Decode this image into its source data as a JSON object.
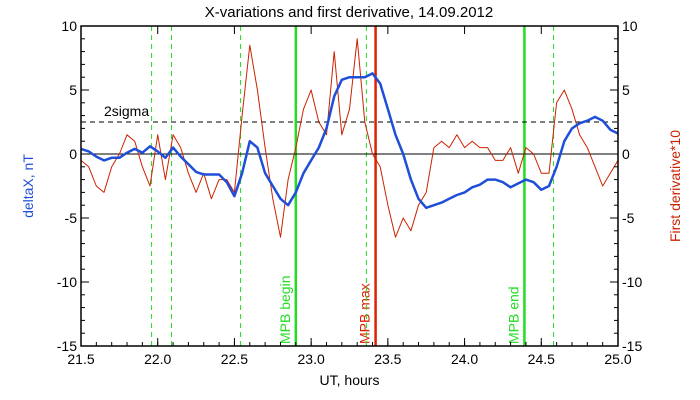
{
  "chart_data": {
    "type": "line",
    "title": "X-variations and first derivative, 14.09.2012",
    "xlabel": "UT, hours",
    "ylabel_left": "deltaX, nT",
    "ylabel_right": "First derivative*10",
    "xlim": [
      21.5,
      25.0
    ],
    "ylim": [
      -15,
      10
    ],
    "x_ticks": [
      21.5,
      22.0,
      22.5,
      23.0,
      23.5,
      24.0,
      24.5,
      25.0
    ],
    "x_tick_labels": [
      "21.5",
      "22.0",
      "22.5",
      "23.0",
      "23.5",
      "24.0",
      "24.5",
      "25.0"
    ],
    "y_ticks": [
      -15,
      -10,
      -5,
      0,
      5,
      10
    ],
    "y_tick_labels": [
      "-15",
      "-10",
      "-5",
      "0",
      "5",
      "10"
    ],
    "colors": {
      "deltaX": "#1f4fd8",
      "derivative": "#cc2200",
      "mpb": "#22dd22",
      "max": "#dd2200",
      "axis": "#000000"
    },
    "threshold": {
      "label": "2sigma",
      "value": 2.5
    },
    "zero_line": 0,
    "series": [
      {
        "key": "deltaX",
        "x": [
          21.5,
          21.55,
          21.6,
          21.65,
          21.7,
          21.75,
          21.8,
          21.85,
          21.9,
          21.95,
          22.0,
          22.05,
          22.1,
          22.15,
          22.2,
          22.25,
          22.3,
          22.35,
          22.4,
          22.45,
          22.5,
          22.55,
          22.6,
          22.65,
          22.7,
          22.75,
          22.8,
          22.85,
          22.9,
          22.95,
          23.0,
          23.05,
          23.1,
          23.15,
          23.2,
          23.25,
          23.3,
          23.35,
          23.4,
          23.45,
          23.5,
          23.55,
          23.6,
          23.65,
          23.7,
          23.75,
          23.8,
          23.85,
          23.9,
          23.95,
          24.0,
          24.05,
          24.1,
          24.15,
          24.2,
          24.25,
          24.3,
          24.35,
          24.4,
          24.45,
          24.5,
          24.55,
          24.6,
          24.65,
          24.7,
          24.75,
          24.8,
          24.85,
          24.9,
          24.95,
          25.0
        ],
        "y": [
          0.4,
          0.2,
          -0.2,
          -0.5,
          -0.3,
          -0.3,
          0.1,
          0.4,
          0.1,
          0.6,
          0.2,
          -0.3,
          0.5,
          -0.2,
          -0.8,
          -1.4,
          -1.6,
          -1.6,
          -1.6,
          -2.2,
          -3.3,
          -1.5,
          1.0,
          0.5,
          -1.5,
          -2.5,
          -3.5,
          -4.0,
          -3.0,
          -1.5,
          -0.5,
          0.5,
          2.0,
          4.5,
          5.8,
          6.0,
          6.0,
          6.0,
          6.3,
          5.5,
          3.5,
          1.5,
          0.0,
          -2.0,
          -3.5,
          -4.2,
          -4.0,
          -3.8,
          -3.5,
          -3.2,
          -3.0,
          -2.6,
          -2.4,
          -2.0,
          -2.0,
          -2.2,
          -2.6,
          -2.3,
          -2.0,
          -2.2,
          -2.8,
          -2.5,
          -1.0,
          1.0,
          2.0,
          2.4,
          2.6,
          2.9,
          2.6,
          1.9,
          1.6
        ]
      },
      {
        "key": "derivative",
        "x": [
          21.5,
          21.55,
          21.6,
          21.65,
          21.7,
          21.75,
          21.8,
          21.85,
          21.9,
          21.95,
          22.0,
          22.05,
          22.1,
          22.15,
          22.2,
          22.25,
          22.3,
          22.35,
          22.4,
          22.45,
          22.5,
          22.55,
          22.6,
          22.65,
          22.7,
          22.75,
          22.8,
          22.85,
          22.9,
          22.95,
          23.0,
          23.05,
          23.1,
          23.15,
          23.2,
          23.25,
          23.3,
          23.35,
          23.4,
          23.45,
          23.5,
          23.55,
          23.6,
          23.65,
          23.7,
          23.75,
          23.8,
          23.85,
          23.9,
          23.95,
          24.0,
          24.05,
          24.1,
          24.15,
          24.2,
          24.25,
          24.3,
          24.35,
          24.4,
          24.45,
          24.5,
          24.55,
          24.6,
          24.65,
          24.7,
          24.75,
          24.8,
          24.85,
          24.9,
          24.95,
          25.0
        ],
        "y": [
          -0.5,
          -1.0,
          -2.5,
          -3.0,
          -1.0,
          0.0,
          1.5,
          1.0,
          -1.0,
          -2.5,
          1.5,
          -2.0,
          1.5,
          0.5,
          -1.5,
          -3.0,
          -1.5,
          -3.5,
          -2.0,
          -2.0,
          -3.0,
          3.0,
          8.5,
          5.0,
          0.5,
          -3.5,
          -6.5,
          -2.0,
          0.5,
          3.5,
          5.0,
          2.5,
          1.5,
          8.0,
          1.5,
          3.5,
          9.0,
          2.5,
          0.0,
          -1.0,
          -4.0,
          -6.5,
          -5.0,
          -6.0,
          -4.0,
          -3.0,
          0.5,
          1.0,
          0.5,
          1.5,
          0.5,
          1.0,
          0.5,
          0.5,
          -0.5,
          -0.5,
          0.5,
          -1.5,
          0.5,
          0.0,
          -1.5,
          -1.5,
          4.0,
          5.0,
          3.5,
          1.5,
          0.5,
          -1.0,
          -2.5,
          -1.5,
          -0.5
        ]
      }
    ],
    "vlines": [
      {
        "x": 22.9,
        "label": "MPB begin",
        "style": "solid",
        "color": "#22dd22"
      },
      {
        "x": 23.42,
        "label": "MPB max",
        "style": "solid",
        "color": "#dd2200"
      },
      {
        "x": 24.39,
        "label": "MPB end",
        "style": "solid",
        "color": "#22dd22"
      },
      {
        "x": 21.96,
        "label": "",
        "style": "dashed",
        "color": "#22dd22"
      },
      {
        "x": 22.09,
        "label": "",
        "style": "dashed",
        "color": "#22dd22"
      },
      {
        "x": 22.54,
        "label": "",
        "style": "dashed",
        "color": "#22dd22"
      },
      {
        "x": 23.36,
        "label": "",
        "style": "dashed",
        "color": "#22dd22"
      },
      {
        "x": 24.58,
        "label": "",
        "style": "dashed",
        "color": "#22dd22"
      }
    ]
  }
}
